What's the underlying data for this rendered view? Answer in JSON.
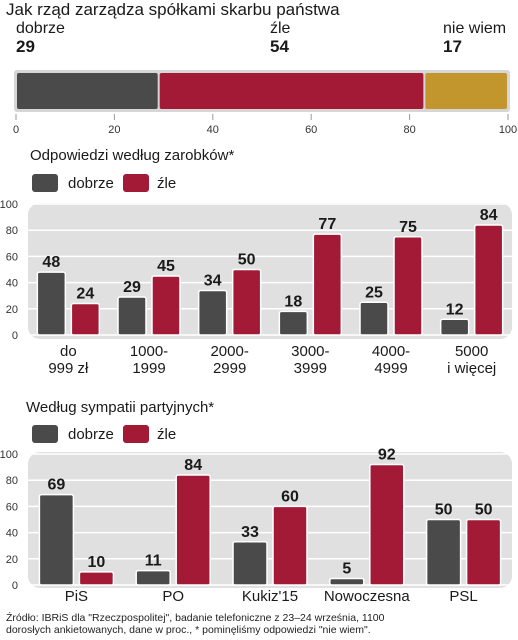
{
  "colors": {
    "good": "#4a4a4a",
    "bad": "#a31a36",
    "dontknow": "#c2962c",
    "panel": "#e0e0e0"
  },
  "chart_data": [
    {
      "type": "bar",
      "orientation": "horizontal-stacked",
      "title": "Jak rząd zarządza spółkami skarbu państwa",
      "series": [
        {
          "name": "dobrze",
          "values": [
            29
          ]
        },
        {
          "name": "źle",
          "values": [
            54
          ]
        },
        {
          "name": "nie wiem",
          "values": [
            17
          ]
        }
      ],
      "xlim": [
        0,
        100
      ],
      "ticks": [
        "0",
        "20",
        "40",
        "60",
        "80",
        "100"
      ]
    },
    {
      "type": "bar",
      "title": "Odpowiedzi według zarobków*",
      "legend": [
        "dobrze",
        "źle"
      ],
      "categories": [
        [
          "do",
          "999 zł"
        ],
        [
          "1000-",
          "1999"
        ],
        [
          "2000-",
          "2999"
        ],
        [
          "3000-",
          "3999"
        ],
        [
          "4000-",
          "4999"
        ],
        [
          "5000",
          "i więcej"
        ]
      ],
      "series": [
        {
          "name": "dobrze",
          "values": [
            48,
            29,
            34,
            18,
            25,
            12
          ]
        },
        {
          "name": "źle",
          "values": [
            24,
            45,
            50,
            77,
            75,
            84
          ]
        }
      ],
      "ylim": [
        0,
        100
      ],
      "yticks": [
        "0",
        "20",
        "40",
        "60",
        "80",
        "100"
      ]
    },
    {
      "type": "bar",
      "title": "Według sympatii partyjnych*",
      "legend": [
        "dobrze",
        "źle"
      ],
      "categories": [
        [
          "PiS"
        ],
        [
          "PO"
        ],
        [
          "Kukiz'15"
        ],
        [
          "Nowoczesna"
        ],
        [
          "PSL"
        ]
      ],
      "series": [
        {
          "name": "dobrze",
          "values": [
            69,
            11,
            33,
            5,
            50
          ]
        },
        {
          "name": "źle",
          "values": [
            10,
            84,
            60,
            92,
            50
          ]
        }
      ],
      "ylim": [
        0,
        100
      ],
      "yticks": [
        "0",
        "20",
        "40",
        "60",
        "80",
        "100"
      ]
    }
  ],
  "footer": {
    "line1": "Źródło: IBRiS dla \"Rzeczpospolitej\", badanie telefoniczne z 23–24 września, 1100",
    "line2": "dorosłych ankietowanych, dane w proc., * pominęliśmy odpowiedzi \"nie wiem\"."
  }
}
